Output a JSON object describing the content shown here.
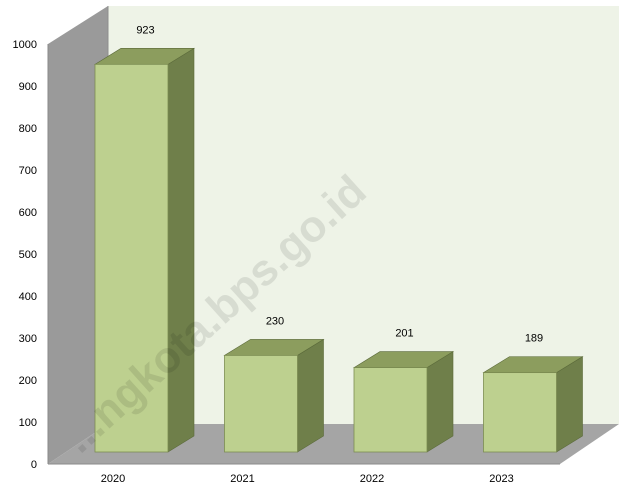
{
  "chart_data": {
    "type": "bar",
    "categories": [
      "2020",
      "2021",
      "2022",
      "2023"
    ],
    "values": [
      923,
      230,
      201,
      189
    ],
    "data_labels": [
      "923",
      "230",
      "201",
      "189"
    ],
    "y_ticks": [
      "0",
      "100",
      "200",
      "300",
      "400",
      "500",
      "600",
      "700",
      "800",
      "900",
      "1000"
    ],
    "ylim": [
      0,
      1000
    ],
    "title": "",
    "xlabel": "",
    "ylabel": "",
    "grid": false,
    "legend": "none",
    "style": "3d"
  },
  "watermark": "...ngkota.bps.go.id",
  "colors": {
    "bar_front": "#bdd08f",
    "bar_top": "#8c9d5e",
    "bar_side": "#6f7f4a",
    "back_wall": "#eef3e7",
    "side_wall": "#9a9a9a",
    "floor": "#a5a5a5"
  }
}
